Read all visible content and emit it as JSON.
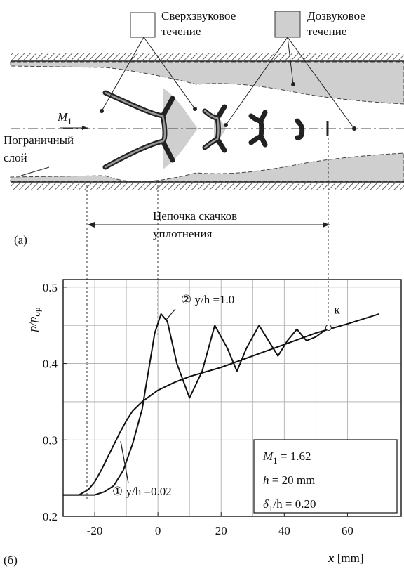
{
  "diagram": {
    "legend": [
      {
        "lines": [
          "Сверхзвуковое",
          "течение"
        ]
      },
      {
        "lines": [
          "Дозвуковое",
          "течение"
        ]
      }
    ],
    "inflow_label": {
      "main": "M",
      "sub": "1"
    },
    "boundary_layer": [
      "Пограничный",
      "слой"
    ],
    "shock_train": [
      "Цепочка скачков",
      "уплотнения"
    ],
    "panel_label": "(a)"
  },
  "chart_data": {
    "type": "line",
    "panel_label": "(б)",
    "y_label": {
      "main": "p/p",
      "sub": "ор"
    },
    "x_label": {
      "main": "x",
      "rest": " [mm]"
    },
    "xlim": [
      -30,
      77
    ],
    "ylim": [
      0.2,
      0.51
    ],
    "xticks": [
      -20,
      0,
      20,
      40,
      60
    ],
    "yticks": [
      0.2,
      0.3,
      0.4,
      0.5
    ],
    "xgrid": [
      -20,
      -10,
      0,
      10,
      20,
      30,
      40,
      50,
      60,
      70
    ],
    "ygrid": [
      0.25,
      0.3,
      0.35,
      0.4,
      0.45,
      0.5
    ],
    "grid": true,
    "series": [
      {
        "name": "② y/h =1.0",
        "color": "#111111",
        "x": [
          -30,
          -20,
          -17,
          -14,
          -11,
          -8,
          -5,
          -3,
          -1,
          1,
          3,
          6,
          10,
          14,
          18,
          22,
          25,
          28,
          32,
          35,
          38,
          41,
          44,
          47,
          50,
          54
        ],
        "values": [
          0.228,
          0.228,
          0.232,
          0.24,
          0.26,
          0.295,
          0.34,
          0.39,
          0.44,
          0.465,
          0.455,
          0.4,
          0.355,
          0.39,
          0.45,
          0.42,
          0.39,
          0.42,
          0.45,
          0.43,
          0.41,
          0.43,
          0.445,
          0.43,
          0.435,
          0.447
        ]
      },
      {
        "name": "① y/h =0.02",
        "color": "#111111",
        "x": [
          -30,
          -25,
          -22,
          -20,
          -18,
          -15,
          -12,
          -10,
          -8,
          -5,
          0,
          5,
          10,
          20,
          30,
          40,
          50,
          60,
          70
        ],
        "values": [
          0.228,
          0.228,
          0.235,
          0.245,
          0.26,
          0.285,
          0.31,
          0.325,
          0.338,
          0.35,
          0.365,
          0.375,
          0.383,
          0.395,
          0.41,
          0.425,
          0.44,
          0.452,
          0.465
        ]
      }
    ],
    "point": {
      "label": "к",
      "x": 54,
      "y": 0.447
    },
    "annotations": [
      {
        "main": "M",
        "sub": "1",
        "rest": " = 1.62"
      },
      {
        "main": "h",
        "rest": "  = 20 mm"
      },
      {
        "main": "δ",
        "sub": "1",
        "rest": "/h = 0.20"
      }
    ]
  }
}
